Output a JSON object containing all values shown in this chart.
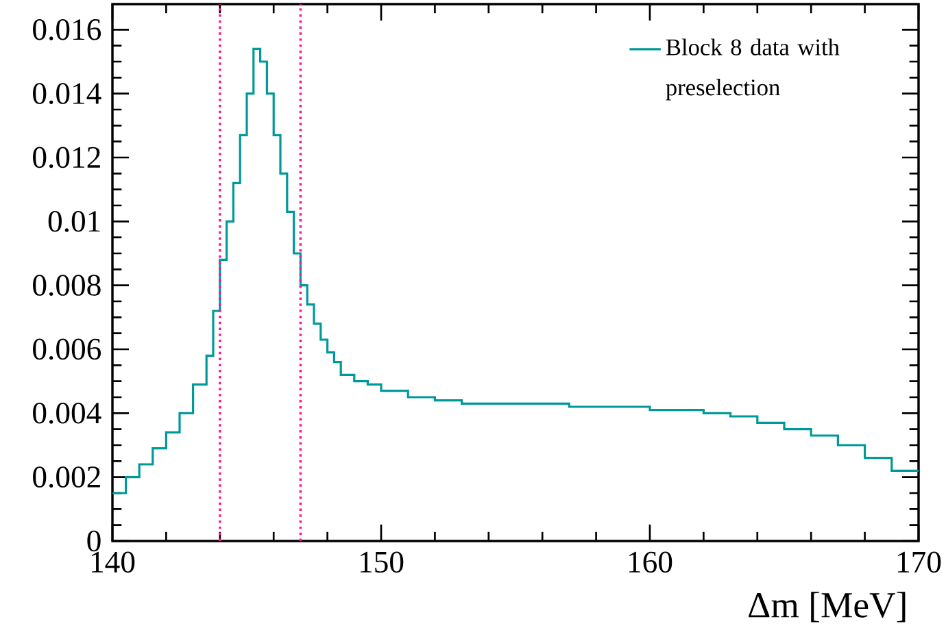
{
  "chart_data": {
    "type": "histogram",
    "xlabel": "Δm [MeV]",
    "bins": [
      140,
      140.5,
      141,
      141.5,
      142,
      142.5,
      143,
      143.5,
      143.75,
      144,
      144.25,
      144.5,
      144.75,
      145,
      145.25,
      145.5,
      145.75,
      146,
      146.25,
      146.5,
      146.75,
      147,
      147.25,
      147.5,
      147.75,
      148,
      148.25,
      148.5,
      149,
      149.5,
      150,
      151,
      152,
      153,
      154,
      155,
      156,
      157,
      158,
      159,
      160,
      161,
      162,
      163,
      164,
      165,
      166,
      167,
      168,
      169,
      170
    ],
    "series": [
      {
        "name": "Block 8 data with preselection",
        "color": "#009999",
        "values": [
          0.0015,
          0.002,
          0.0024,
          0.0029,
          0.0034,
          0.004,
          0.0049,
          0.0058,
          0.0072,
          0.0088,
          0.01,
          0.0112,
          0.0127,
          0.014,
          0.0154,
          0.015,
          0.014,
          0.0127,
          0.0115,
          0.0103,
          0.009,
          0.008,
          0.0074,
          0.0068,
          0.0063,
          0.0059,
          0.0056,
          0.0052,
          0.005,
          0.0049,
          0.0047,
          0.0045,
          0.0044,
          0.0043,
          0.0043,
          0.0043,
          0.0043,
          0.0042,
          0.0042,
          0.0042,
          0.0041,
          0.0041,
          0.004,
          0.0039,
          0.0037,
          0.0035,
          0.0033,
          0.003,
          0.0026,
          0.0022
        ]
      }
    ],
    "xlim": [
      140,
      170
    ],
    "ylim": [
      0,
      0.0168
    ],
    "xticks": [
      140,
      150,
      160,
      170
    ],
    "yticks": [
      0,
      0.002,
      0.004,
      0.006,
      0.008,
      0.01,
      0.012,
      0.014,
      0.016
    ],
    "ref_lines": [
      {
        "axis": "x",
        "value": 144,
        "color": "#ff1493",
        "line_style": "dotted"
      },
      {
        "axis": "x",
        "value": 147,
        "color": "#ff1493",
        "line_style": "dotted"
      }
    ],
    "legend": "top right",
    "grid": false
  }
}
